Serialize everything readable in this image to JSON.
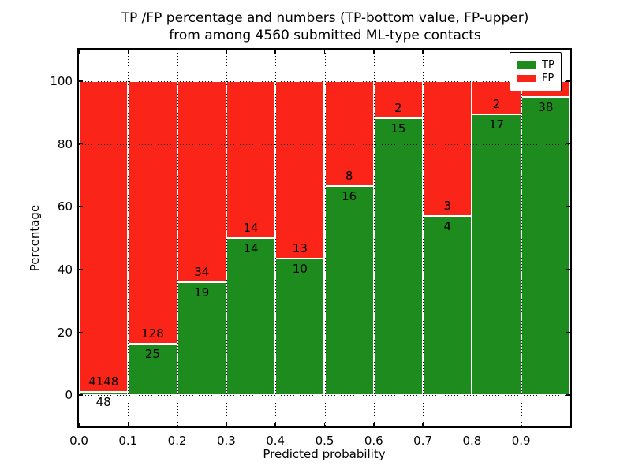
{
  "chart_data": {
    "type": "bar",
    "stacked": true,
    "title_line1": "TP /FP percentage and numbers (TP-bottom value, FP-upper)",
    "title_line2": "from among 4560 submitted ML-type contacts",
    "xlabel": "Predicted probability",
    "ylabel": "Percentage",
    "xlim": [
      0,
      1.0
    ],
    "ylim": [
      -10,
      110
    ],
    "grid": true,
    "legend_position": "upper-right",
    "legend": [
      {
        "label": "TP",
        "color": "#1e8b1e"
      },
      {
        "label": "FP",
        "color": "#fa2418"
      }
    ],
    "colors": {
      "tp": "#1e8b1e",
      "fp": "#fa2418",
      "grid": "#000000",
      "spine": "#000000"
    },
    "xticks": [
      {
        "v": 0.0,
        "label": "0.0"
      },
      {
        "v": 0.1,
        "label": "0.1"
      },
      {
        "v": 0.2,
        "label": "0.2"
      },
      {
        "v": 0.3,
        "label": "0.3"
      },
      {
        "v": 0.4,
        "label": "0.4"
      },
      {
        "v": 0.5,
        "label": "0.5"
      },
      {
        "v": 0.6,
        "label": "0.6"
      },
      {
        "v": 0.7,
        "label": "0.7"
      },
      {
        "v": 0.8,
        "label": "0.8"
      },
      {
        "v": 0.9,
        "label": "0.9"
      }
    ],
    "yticks": [
      {
        "v": 0,
        "label": "0"
      },
      {
        "v": 20,
        "label": "20"
      },
      {
        "v": 40,
        "label": "40"
      },
      {
        "v": 60,
        "label": "60"
      },
      {
        "v": 80,
        "label": "80"
      },
      {
        "v": 100,
        "label": "100"
      }
    ],
    "bars": [
      {
        "x0": 0.0,
        "x1": 0.1,
        "tp": 48,
        "fp": 4148,
        "tp_pct": 1.14
      },
      {
        "x0": 0.1,
        "x1": 0.2,
        "tp": 25,
        "fp": 128,
        "tp_pct": 16.34
      },
      {
        "x0": 0.2,
        "x1": 0.3,
        "tp": 19,
        "fp": 34,
        "tp_pct": 35.85
      },
      {
        "x0": 0.3,
        "x1": 0.4,
        "tp": 14,
        "fp": 14,
        "tp_pct": 50.0
      },
      {
        "x0": 0.4,
        "x1": 0.5,
        "tp": 10,
        "fp": 13,
        "tp_pct": 43.48
      },
      {
        "x0": 0.5,
        "x1": 0.6,
        "tp": 16,
        "fp": 8,
        "tp_pct": 66.67
      },
      {
        "x0": 0.6,
        "x1": 0.7,
        "tp": 15,
        "fp": 2,
        "tp_pct": 88.24
      },
      {
        "x0": 0.7,
        "x1": 0.8,
        "tp": 4,
        "fp": 3,
        "tp_pct": 57.14
      },
      {
        "x0": 0.8,
        "x1": 0.9,
        "tp": 17,
        "fp": 2,
        "tp_pct": 89.47
      },
      {
        "x0": 0.9,
        "x1": 1.0,
        "tp": 38,
        "fp": null,
        "tp_pct": 95.0
      }
    ]
  }
}
